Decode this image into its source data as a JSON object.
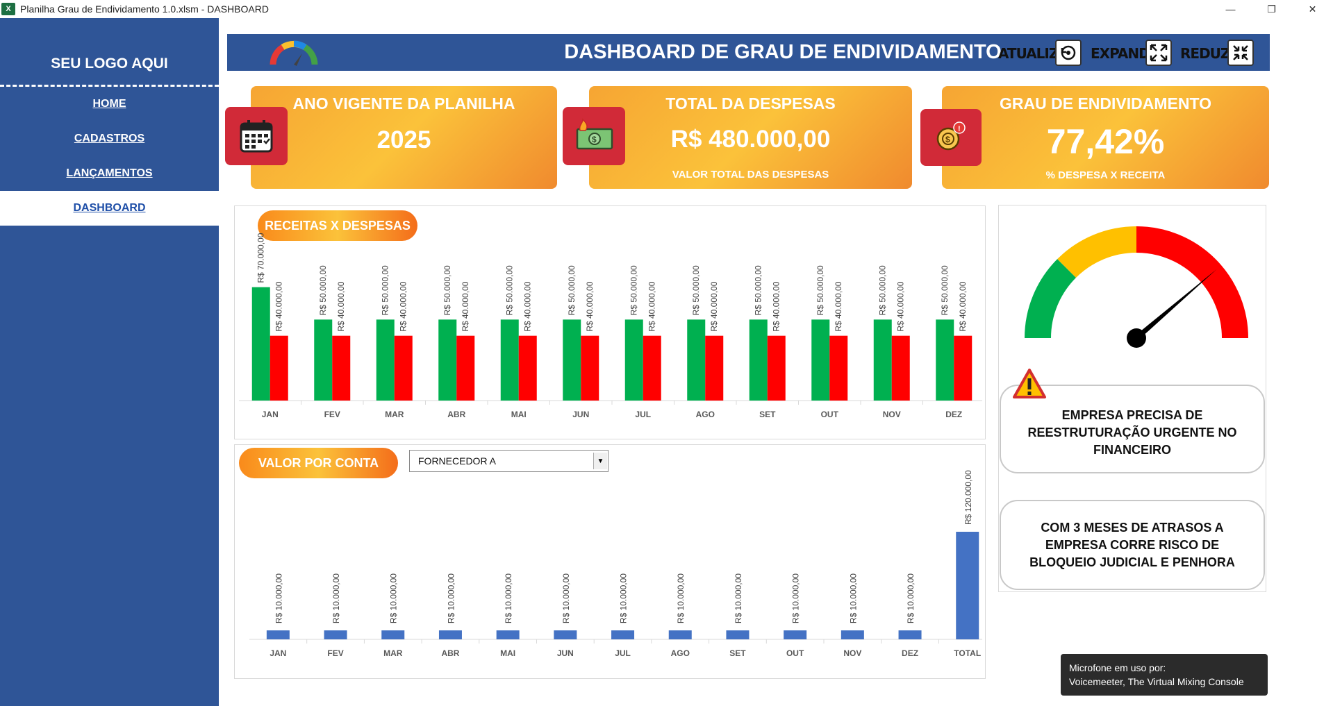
{
  "window": {
    "title": "Planilha Grau de Endividamento 1.0.xlsm  -  DASHBOARD",
    "app_icon": "excel-icon",
    "controls": [
      "minimize-icon",
      "restore-icon",
      "close-icon"
    ]
  },
  "sidebar": {
    "logo_text": "SEU LOGO AQUI",
    "items": [
      {
        "label": "HOME"
      },
      {
        "label": "CADASTROS"
      },
      {
        "label": "LANÇAMENTOS"
      },
      {
        "label": "DASHBOARD",
        "active": true
      }
    ]
  },
  "header": {
    "title": "DASHBOARD DE GRAU DE ENDIVIDAMENTO",
    "buttons": [
      {
        "label": "ATUALIZAR",
        "icon": "refresh-icon"
      },
      {
        "label": "EXPANDIR",
        "icon": "expand-icon"
      },
      {
        "label": "REDUZIR",
        "icon": "collapse-icon"
      }
    ]
  },
  "cards": [
    {
      "title": "ANO VIGENTE DA PLANILHA",
      "value": "2025",
      "subtitle": "",
      "icon": "calendar-icon"
    },
    {
      "title": "TOTAL DA DESPESAS",
      "value": "R$ 480.000,00",
      "subtitle": "VALOR TOTAL DAS DESPESAS",
      "icon": "money-fire-icon"
    },
    {
      "title": "GRAU DE ENDIVIDAMENTO",
      "value": "77,42%",
      "subtitle": "% DESPESA X RECEITA",
      "icon": "debt-alert-icon"
    }
  ],
  "receitas_panel": {
    "title": "RECEITAS X DESPESAS"
  },
  "valor_panel": {
    "title": "VALOR POR CONTA",
    "dropdown_value": "FORNECEDOR A"
  },
  "colors": {
    "receita": "#00b050",
    "despesa": "#ff0000",
    "conta": "#4472c4",
    "sidebar": "#2f5597"
  },
  "chart_data": [
    {
      "type": "bar",
      "categories": [
        "JAN",
        "FEV",
        "MAR",
        "ABR",
        "MAI",
        "JUN",
        "JUL",
        "AGO",
        "SET",
        "OUT",
        "NOV",
        "DEZ"
      ],
      "series": [
        {
          "values": [
            70000,
            50000,
            50000,
            50000,
            50000,
            50000,
            50000,
            50000,
            50000,
            50000,
            50000,
            50000
          ],
          "labels": [
            "R$ 70.000,00",
            "R$ 50.000,00",
            "R$ 50.000,00",
            "R$ 50.000,00",
            "R$ 50.000,00",
            "R$ 50.000,00",
            "R$ 50.000,00",
            "R$ 50.000,00",
            "R$ 50.000,00",
            "R$ 50.000,00",
            "R$ 50.000,00",
            "R$ 50.000,00"
          ]
        },
        {
          "values": [
            40000,
            40000,
            40000,
            40000,
            40000,
            40000,
            40000,
            40000,
            40000,
            40000,
            40000,
            40000
          ],
          "labels": [
            "R$ 40.000,00",
            "R$ 40.000,00",
            "R$ 40.000,00",
            "R$ 40.000,00",
            "R$ 40.000,00",
            "R$ 40.000,00",
            "R$ 40.000,00",
            "R$ 40.000,00",
            "R$ 40.000,00",
            "R$ 40.000,00",
            "R$ 40.000,00",
            "R$ 40.000,00"
          ]
        }
      ],
      "ylim": [
        0,
        120000
      ]
    },
    {
      "type": "bar",
      "categories": [
        "JAN",
        "FEV",
        "MAR",
        "ABR",
        "MAI",
        "JUN",
        "JUL",
        "AGO",
        "SET",
        "OUT",
        "NOV",
        "DEZ",
        "TOTAL"
      ],
      "series": [
        {
          "values": [
            10000,
            10000,
            10000,
            10000,
            10000,
            10000,
            10000,
            10000,
            10000,
            10000,
            10000,
            10000,
            120000
          ],
          "labels": [
            "R$ 10.000,00",
            "R$ 10.000,00",
            "R$ 10.000,00",
            "R$ 10.000,00",
            "R$ 10.000,00",
            "R$ 10.000,00",
            "R$ 10.000,00",
            "R$ 10.000,00",
            "R$ 10.000,00",
            "R$ 10.000,00",
            "R$ 10.000,00",
            "R$ 10.000,00",
            "R$ 120.000,00"
          ]
        }
      ],
      "ylim": [
        0,
        120000
      ]
    },
    {
      "type": "gauge",
      "segments": [
        "#00b050",
        "#ffc000",
        "#ff0000"
      ],
      "value_percent": 77.42
    }
  ],
  "messages": [
    {
      "text": "EMPRESA PRECISA DE REESTRUTURAÇÃO URGENTE NO FINANCEIRO",
      "icon": "warning-icon"
    },
    {
      "text": "COM 3 MESES DE ATRASOS A EMPRESA CORRE RISCO DE BLOQUEIO JUDICIAL E PENHORA"
    }
  ],
  "toast": {
    "line1": "Microfone em uso por:",
    "line2": "Voicemeeter, The Virtual Mixing Console"
  }
}
